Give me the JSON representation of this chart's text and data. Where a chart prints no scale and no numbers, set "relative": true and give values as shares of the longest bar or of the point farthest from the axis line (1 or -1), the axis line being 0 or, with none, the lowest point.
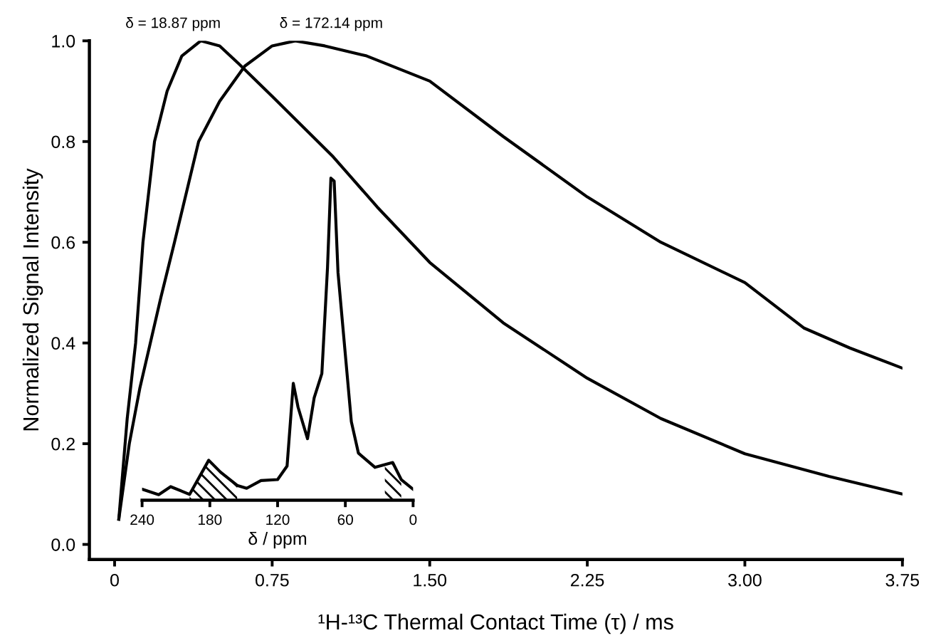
{
  "chart_data": [
    {
      "type": "line",
      "xlabel": "¹H-¹³C Thermal Contact Time (τ) / ms",
      "ylabel": "Normalized Signal Intensity",
      "xlim": [
        -0.12,
        3.75
      ],
      "ylim": [
        -0.03,
        1.0
      ],
      "xticks": [
        {
          "value": 0,
          "label": "0"
        },
        0.75,
        {
          "value": 1.5,
          "label": "1.50"
        },
        2.25,
        {
          "value": 3.0,
          "label": "3.00"
        },
        3.75
      ],
      "yticks": [
        {
          "value": 0,
          "label": "0.0"
        },
        0.2,
        0.4,
        0.6,
        0.8,
        {
          "value": 1.0,
          "label": "1.0"
        }
      ],
      "series": [
        {
          "color": "#000000",
          "x": [
            0.02,
            0.06,
            0.1,
            0.135,
            0.19,
            0.25,
            0.32,
            0.41,
            0.5,
            0.59,
            0.75,
            1.04,
            1.25,
            1.5,
            1.85,
            2.25,
            2.6,
            3.0,
            3.4,
            3.75
          ],
          "values": [
            0.05,
            0.25,
            0.4,
            0.6,
            0.8,
            0.9,
            0.97,
            1.0,
            0.99,
            0.955,
            0.89,
            0.77,
            0.67,
            0.56,
            0.44,
            0.33,
            0.25,
            0.18,
            0.135,
            0.1
          ]
        },
        {
          "color": "#000000",
          "x": [
            0.02,
            0.07,
            0.12,
            0.17,
            0.22,
            0.285,
            0.4,
            0.5,
            0.62,
            0.75,
            0.86,
            1.0,
            1.2,
            1.5,
            1.85,
            2.25,
            2.6,
            3.0,
            3.28,
            3.5,
            3.75
          ],
          "values": [
            0.05,
            0.2,
            0.31,
            0.4,
            0.49,
            0.6,
            0.8,
            0.88,
            0.95,
            0.99,
            1.0,
            0.99,
            0.97,
            0.92,
            0.81,
            0.69,
            0.6,
            0.52,
            0.43,
            0.39,
            0.35
          ]
        }
      ],
      "annotations": [
        {
          "text": "δ = 18.87 ppm",
          "x": 0.41,
          "y": 1.0
        },
        {
          "text": "δ = 172.14 ppm",
          "x": 0.86,
          "y": 1.0
        }
      ]
    },
    {
      "type": "line",
      "relative": true,
      "xlabel": "δ / ppm",
      "xlim": [
        240,
        0
      ],
      "xticks": [
        240,
        180,
        120,
        60,
        0
      ],
      "tick_labels": "x",
      "series": [
        {
          "color": "#000000",
          "x": [
            240,
            225.3,
            214.7,
            197.9,
            181.0,
            170.5,
            155.8,
            147.4,
            134.7,
            120.0,
            111.6,
            106.1,
            101.9,
            93.5,
            87.6,
            80.8,
            75.8,
            72.8,
            69.9,
            66.5,
            54.7,
            48.4,
            33.7,
            18.1,
            10.5,
            0
          ],
          "values": [
            0.034,
            0.017,
            0.042,
            0.018,
            0.124,
            0.087,
            0.046,
            0.037,
            0.061,
            0.064,
            0.106,
            0.363,
            0.289,
            0.191,
            0.318,
            0.393,
            0.722,
            1.0,
            0.991,
            0.707,
            0.244,
            0.146,
            0.102,
            0.117,
            0.064,
            0.034
          ]
        },
        {
          "type": "area",
          "color": "#000000",
          "x": [
            197.9,
            181.0,
            170.5,
            155.8
          ],
          "values": [
            0.018,
            0.124,
            0.087,
            0.046
          ]
        },
        {
          "type": "area",
          "color": "#000000",
          "x": [
            25.0,
            18.1,
            10.5
          ],
          "values": [
            0.11,
            0.117,
            0.064
          ]
        }
      ]
    }
  ]
}
